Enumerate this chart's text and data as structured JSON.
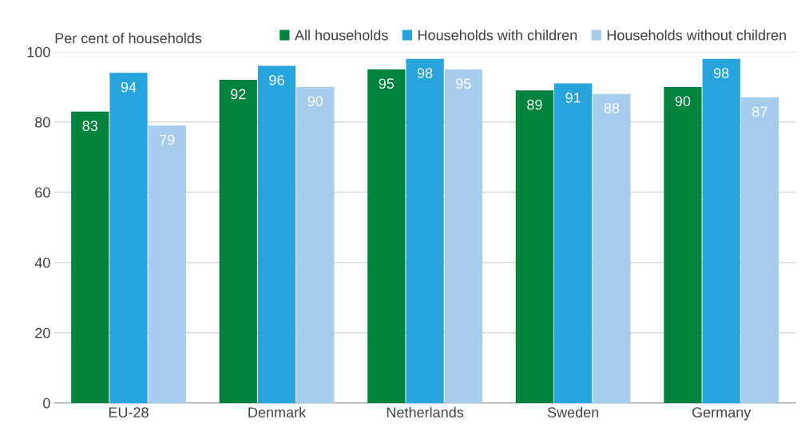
{
  "chart_data": {
    "type": "bar",
    "ylabel": "Per cent of households",
    "categories": [
      "EU-28",
      "Denmark",
      "Netherlands",
      "Sweden",
      "Germany"
    ],
    "series": [
      {
        "name": "All households",
        "color": "#00843d",
        "values": [
          83,
          92,
          95,
          89,
          90
        ]
      },
      {
        "name": "Households with children",
        "color": "#27a3de",
        "values": [
          94,
          96,
          98,
          91,
          98
        ]
      },
      {
        "name": "Households without children",
        "color": "#a6cdee",
        "values": [
          79,
          90,
          95,
          88,
          87
        ]
      }
    ],
    "ylim": [
      0,
      100
    ],
    "yticks": [
      0,
      20,
      40,
      60,
      80,
      100
    ],
    "grid": "y",
    "legend": "top right",
    "data_labels": true
  }
}
